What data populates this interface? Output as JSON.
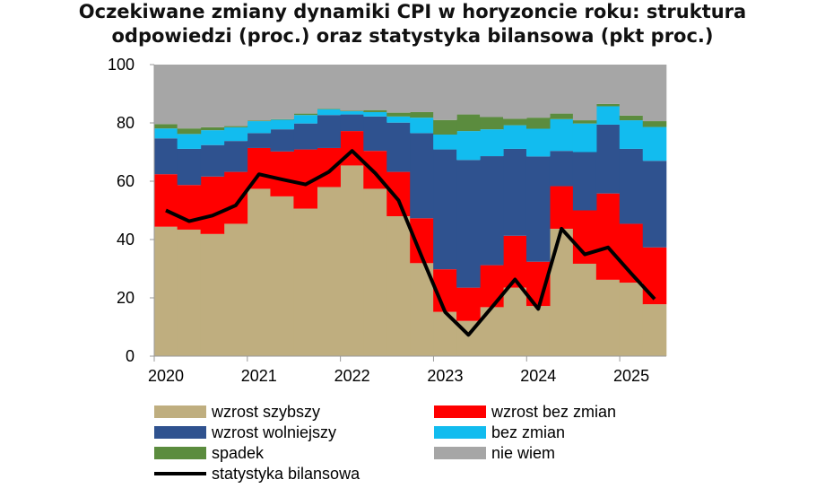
{
  "chart_data": {
    "type": "area",
    "stacked": true,
    "title": [
      "Oczekiwane zmiany dynamiki CPI w horyzoncie roku: struktura",
      "odpowiedzi (proc.) oraz statystyka bilansowa (pkt proc.)"
    ],
    "xlabel": "",
    "ylabel": "",
    "ylim": [
      0,
      100
    ],
    "yticks": [
      0,
      20,
      40,
      60,
      80,
      100
    ],
    "x": [
      "2020Q1",
      "2020Q2",
      "2020Q3",
      "2020Q4",
      "2021Q1",
      "2021Q2",
      "2021Q3",
      "2021Q4",
      "2022Q1",
      "2022Q2",
      "2022Q3",
      "2022Q4",
      "2023Q1",
      "2023Q2",
      "2023Q3",
      "2023Q4",
      "2024Q1",
      "2024Q2",
      "2024Q3",
      "2024Q4",
      "2025Q1",
      "2025Q2"
    ],
    "xtick_labels": [
      "2020",
      "2021",
      "2022",
      "2023",
      "2024",
      "2025"
    ],
    "series": [
      {
        "name": "wzrost szybszy",
        "color": "#BFAE7F",
        "values": [
          44.4,
          43.4,
          41.9,
          45.4,
          57.4,
          54.8,
          50.6,
          58.0,
          65.4,
          57.4,
          48.0,
          31.9,
          15.2,
          12.1,
          16.8,
          23.5,
          17.2,
          43.7,
          31.7,
          26.2,
          25.2,
          17.8
        ]
      },
      {
        "name": "wzrost bez zmian",
        "color": "#FF0000",
        "values": [
          18.0,
          15.3,
          19.7,
          17.8,
          14.0,
          15.4,
          20.3,
          13.4,
          11.8,
          13.0,
          15.2,
          15.4,
          14.6,
          11.4,
          14.4,
          17.8,
          15.2,
          14.6,
          18.3,
          29.6,
          20.2,
          19.5
        ]
      },
      {
        "name": "wzrost wolniejszy",
        "color": "#2F528F",
        "values": [
          12.3,
          12.4,
          10.8,
          10.6,
          5.1,
          7.6,
          8.9,
          11.3,
          5.7,
          11.8,
          16.9,
          29.2,
          41.1,
          43.8,
          37.4,
          29.8,
          36.1,
          12.1,
          20.0,
          23.6,
          25.7,
          29.7
        ]
      },
      {
        "name": "bez zmian",
        "color": "#12BCEF",
        "values": [
          3.4,
          5.1,
          5.1,
          4.7,
          4.1,
          3.3,
          2.9,
          2.0,
          1.1,
          1.5,
          2.1,
          5.3,
          5.1,
          9.9,
          9.2,
          8.1,
          9.5,
          10.9,
          9.8,
          6.3,
          9.8,
          11.6
        ]
      },
      {
        "name": "spadek",
        "color": "#5B8C3E",
        "values": [
          1.5,
          1.9,
          1.0,
          0.4,
          0.2,
          0.2,
          0.5,
          0.2,
          0.2,
          0.7,
          1.3,
          1.9,
          5.0,
          5.7,
          4.2,
          2.2,
          3.8,
          1.9,
          1.1,
          0.8,
          1.6,
          2.0
        ]
      },
      {
        "name": "nie wiem",
        "color": "#A6A6A6",
        "values": [
          20.4,
          21.9,
          21.5,
          21.1,
          19.2,
          18.7,
          16.8,
          15.1,
          15.8,
          15.6,
          16.5,
          16.3,
          19.0,
          17.1,
          18.0,
          18.6,
          18.2,
          16.8,
          19.1,
          13.5,
          17.5,
          19.4
        ]
      }
    ],
    "line": {
      "name": "statystyka bilansowa",
      "color": "#000000",
      "values": [
        50.0,
        46.3,
        48.2,
        51.7,
        62.4,
        60.6,
        58.9,
        63.2,
        70.4,
        62.7,
        53.4,
        34.0,
        15.1,
        7.3,
        16.7,
        26.3,
        16.2,
        43.7,
        34.9,
        37.3,
        28.3,
        19.6
      ]
    },
    "legend": {
      "placement": "bottom",
      "columns": [
        [
          "wzrost szybszy",
          "wzrost wolniejszy",
          "spadek",
          "statystyka bilansowa"
        ],
        [
          "wzrost bez zmian",
          "bez zmian",
          "nie wiem"
        ]
      ]
    },
    "grid": false
  }
}
